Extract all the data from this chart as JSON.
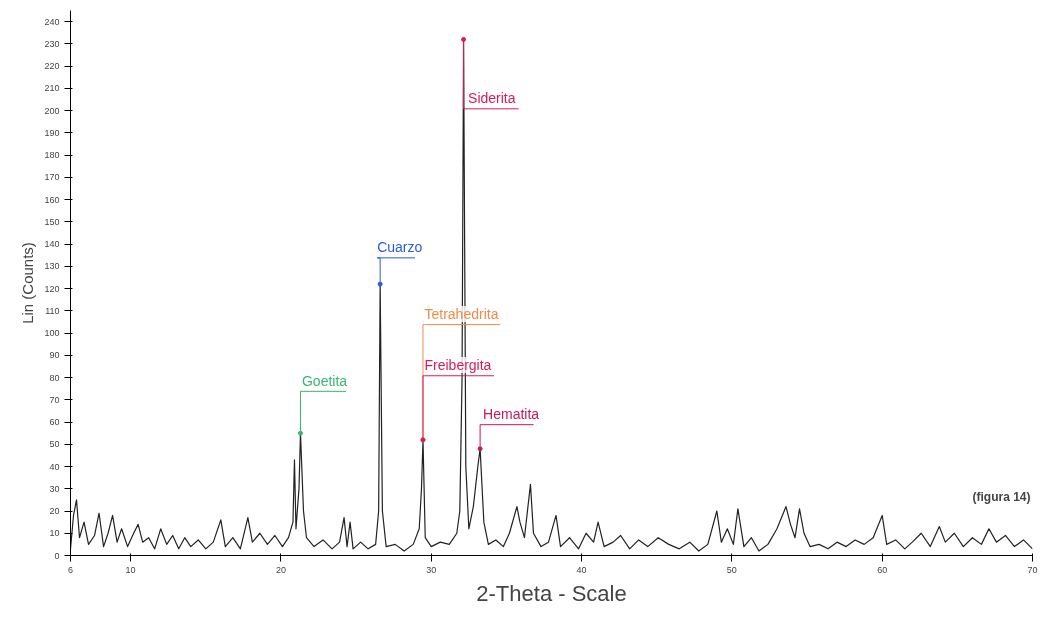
{
  "chart_data": {
    "type": "line",
    "xlabel": "2-Theta - Scale",
    "ylabel": "Lin (Counts)",
    "xlim": [
      6,
      70
    ],
    "xticks": [
      6,
      10,
      20,
      30,
      40,
      50,
      60,
      70
    ],
    "ylim": [
      0,
      245
    ],
    "yticks": [
      0,
      10,
      20,
      30,
      40,
      50,
      60,
      70,
      80,
      90,
      100,
      110,
      120,
      130,
      140,
      150,
      160,
      170,
      180,
      190,
      200,
      210,
      220,
      230,
      240
    ],
    "grid": false,
    "marker": "none",
    "line_style": "solid",
    "series": [
      {
        "color": "#222222",
        "x": [
          6,
          6.2,
          6.4,
          6.6,
          6.9,
          7.2,
          7.6,
          7.9,
          8.2,
          8.5,
          8.8,
          9.1,
          9.4,
          9.8,
          10.2,
          10.5,
          10.8,
          11.2,
          11.6,
          12,
          12.4,
          12.8,
          13.2,
          13.6,
          14,
          14.5,
          15,
          15.5,
          16,
          16.3,
          16.8,
          17.3,
          17.8,
          18.1,
          18.6,
          19.1,
          19.6,
          20.1,
          20.5,
          20.8,
          20.9,
          21.0,
          21.2,
          21.3,
          21.5,
          21.7,
          22.2,
          22.8,
          23.4,
          23.9,
          24.2,
          24.4,
          24.6,
          24.8,
          25.3,
          25.8,
          26.3,
          26.5,
          26.6,
          26.75,
          27,
          27.6,
          28.2,
          28.8,
          29.2,
          29.35,
          29.45,
          29.6,
          30,
          30.6,
          31.2,
          31.7,
          31.9,
          32.05,
          32.15,
          32.3,
          32.5,
          32.8,
          33.1,
          33.25,
          33.5,
          33.8,
          34.3,
          34.8,
          35.2,
          35.7,
          35.9,
          36.2,
          36.6,
          36.8,
          37.3,
          37.8,
          38.3,
          38.6,
          39.2,
          39.8,
          40.3,
          40.8,
          41.1,
          41.5,
          42.1,
          42.6,
          43.2,
          43.8,
          44.4,
          45.1,
          45.8,
          46.5,
          47.2,
          47.8,
          48.4,
          49,
          49.3,
          49.7,
          50.1,
          50.4,
          50.8,
          51.3,
          51.8,
          52.4,
          53,
          53.6,
          53.9,
          54.2,
          54.5,
          54.8,
          55.2,
          55.8,
          56.4,
          57,
          57.6,
          58.2,
          58.8,
          59.4,
          60,
          60.3,
          60.9,
          61.5,
          62,
          62.6,
          63.2,
          63.8,
          64.2,
          64.8,
          65.4,
          66,
          66.6,
          67.1,
          67.6,
          68.2,
          68.8,
          69.4,
          70
        ],
        "values": [
          3,
          18,
          25,
          8,
          15,
          5,
          9,
          19,
          4,
          10,
          18,
          6,
          12,
          4,
          10,
          14,
          6,
          8,
          3,
          12,
          5,
          9,
          3,
          8,
          4,
          7,
          3,
          6,
          16,
          4,
          8,
          3,
          17,
          6,
          10,
          5,
          9,
          4,
          8,
          15,
          43,
          12,
          30,
          55,
          20,
          8,
          4,
          7,
          3,
          6,
          17,
          4,
          15,
          3,
          6,
          3,
          5,
          20,
          122,
          20,
          4,
          5,
          2,
          5,
          12,
          30,
          52,
          8,
          4,
          6,
          5,
          10,
          20,
          80,
          232,
          40,
          12,
          22,
          40,
          48,
          15,
          5,
          7,
          4,
          10,
          22,
          15,
          8,
          32,
          10,
          4,
          6,
          18,
          4,
          8,
          3,
          10,
          6,
          15,
          4,
          6,
          9,
          3,
          7,
          4,
          8,
          5,
          3,
          6,
          2,
          5,
          20,
          6,
          12,
          5,
          21,
          4,
          8,
          2,
          5,
          12,
          22,
          14,
          8,
          21,
          10,
          4,
          5,
          3,
          6,
          4,
          7,
          5,
          8,
          18,
          5,
          7,
          3,
          6,
          10,
          4,
          13,
          6,
          10,
          4,
          8,
          5,
          12,
          6,
          9,
          4,
          7,
          3
        ]
      }
    ],
    "annotations": [
      {
        "text": "Siderita",
        "x": 32.15,
        "y": 232
      },
      {
        "text": "Cuarzo",
        "x": 26.6,
        "y": 122
      },
      {
        "text": "Tetrahedrita",
        "x": 29.45,
        "y": 52
      },
      {
        "text": "Freibergita",
        "x": 29.45,
        "y": 52
      },
      {
        "text": "Goetita",
        "x": 21.3,
        "y": 55
      },
      {
        "text": "Hematita",
        "x": 33.25,
        "y": 48
      },
      "(figura 14)"
    ]
  }
}
